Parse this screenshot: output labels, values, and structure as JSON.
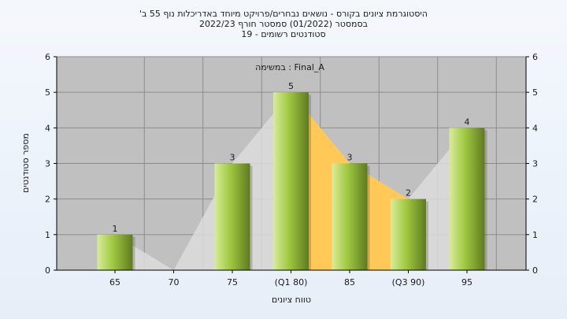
{
  "chart_data": {
    "type": "bar",
    "title_lines": [
      "'היסטוגרמת ציונים בקורס - נושאים נבחרים/פרויקט מיוחד באדריכלות נוף 55 ב",
      "בסמסטר  (01/2022)  סמסטר חורף 2022/23",
      "סטודנטים רשומים - 19"
    ],
    "categories": [
      "65",
      "70",
      "75",
      "(Q1 80)",
      "85",
      "(Q3 90)",
      "95"
    ],
    "values": [
      1,
      0,
      3,
      5,
      3,
      2,
      4
    ],
    "value_labels": [
      "1",
      "",
      "3",
      "5",
      "3",
      "2",
      "4"
    ],
    "yticks": [
      "0",
      "1",
      "2",
      "3",
      "4",
      "5",
      "6"
    ],
    "ylim": [
      0,
      6
    ],
    "xlabel": "טווח ציונים",
    "ylabel": "מספר סטודנטים",
    "series_label": "במשימה : Final_A",
    "colors": {
      "plot_bg": "#c0c0c0",
      "grid": "#8c8c8c",
      "bar_light": "#d8ec9a",
      "bar_mid": "#9fc73f",
      "bar_dark": "#5f7a22",
      "iqr_fill": "#ffc857",
      "shadow_area": "#dcdcdc"
    }
  }
}
